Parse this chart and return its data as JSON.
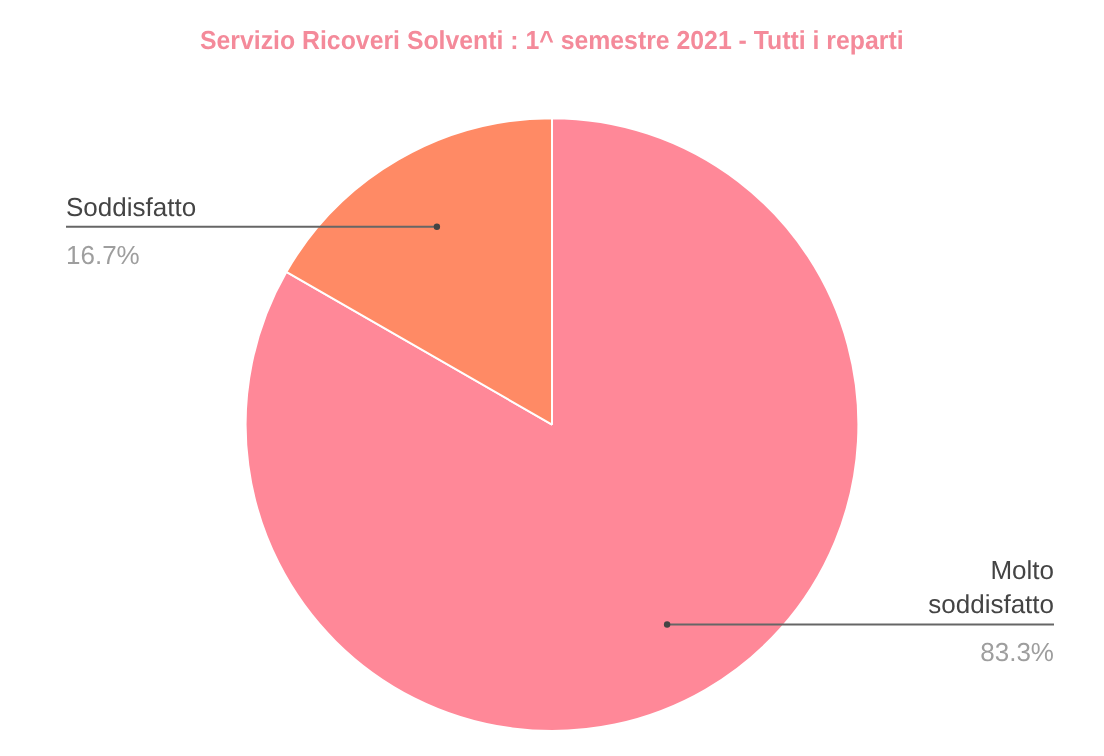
{
  "chart_data": {
    "type": "pie",
    "title": "Servizio Ricoveri Solventi : 1^ semestre 2021 - Tutti i reparti",
    "categories": [
      "Molto soddisfatto",
      "Soddisfatto"
    ],
    "values": [
      83.3,
      16.7
    ],
    "colors": [
      "#ff8898",
      "#ff8a65"
    ],
    "value_labels": [
      "83.3%",
      "16.7%"
    ],
    "legend": false
  }
}
